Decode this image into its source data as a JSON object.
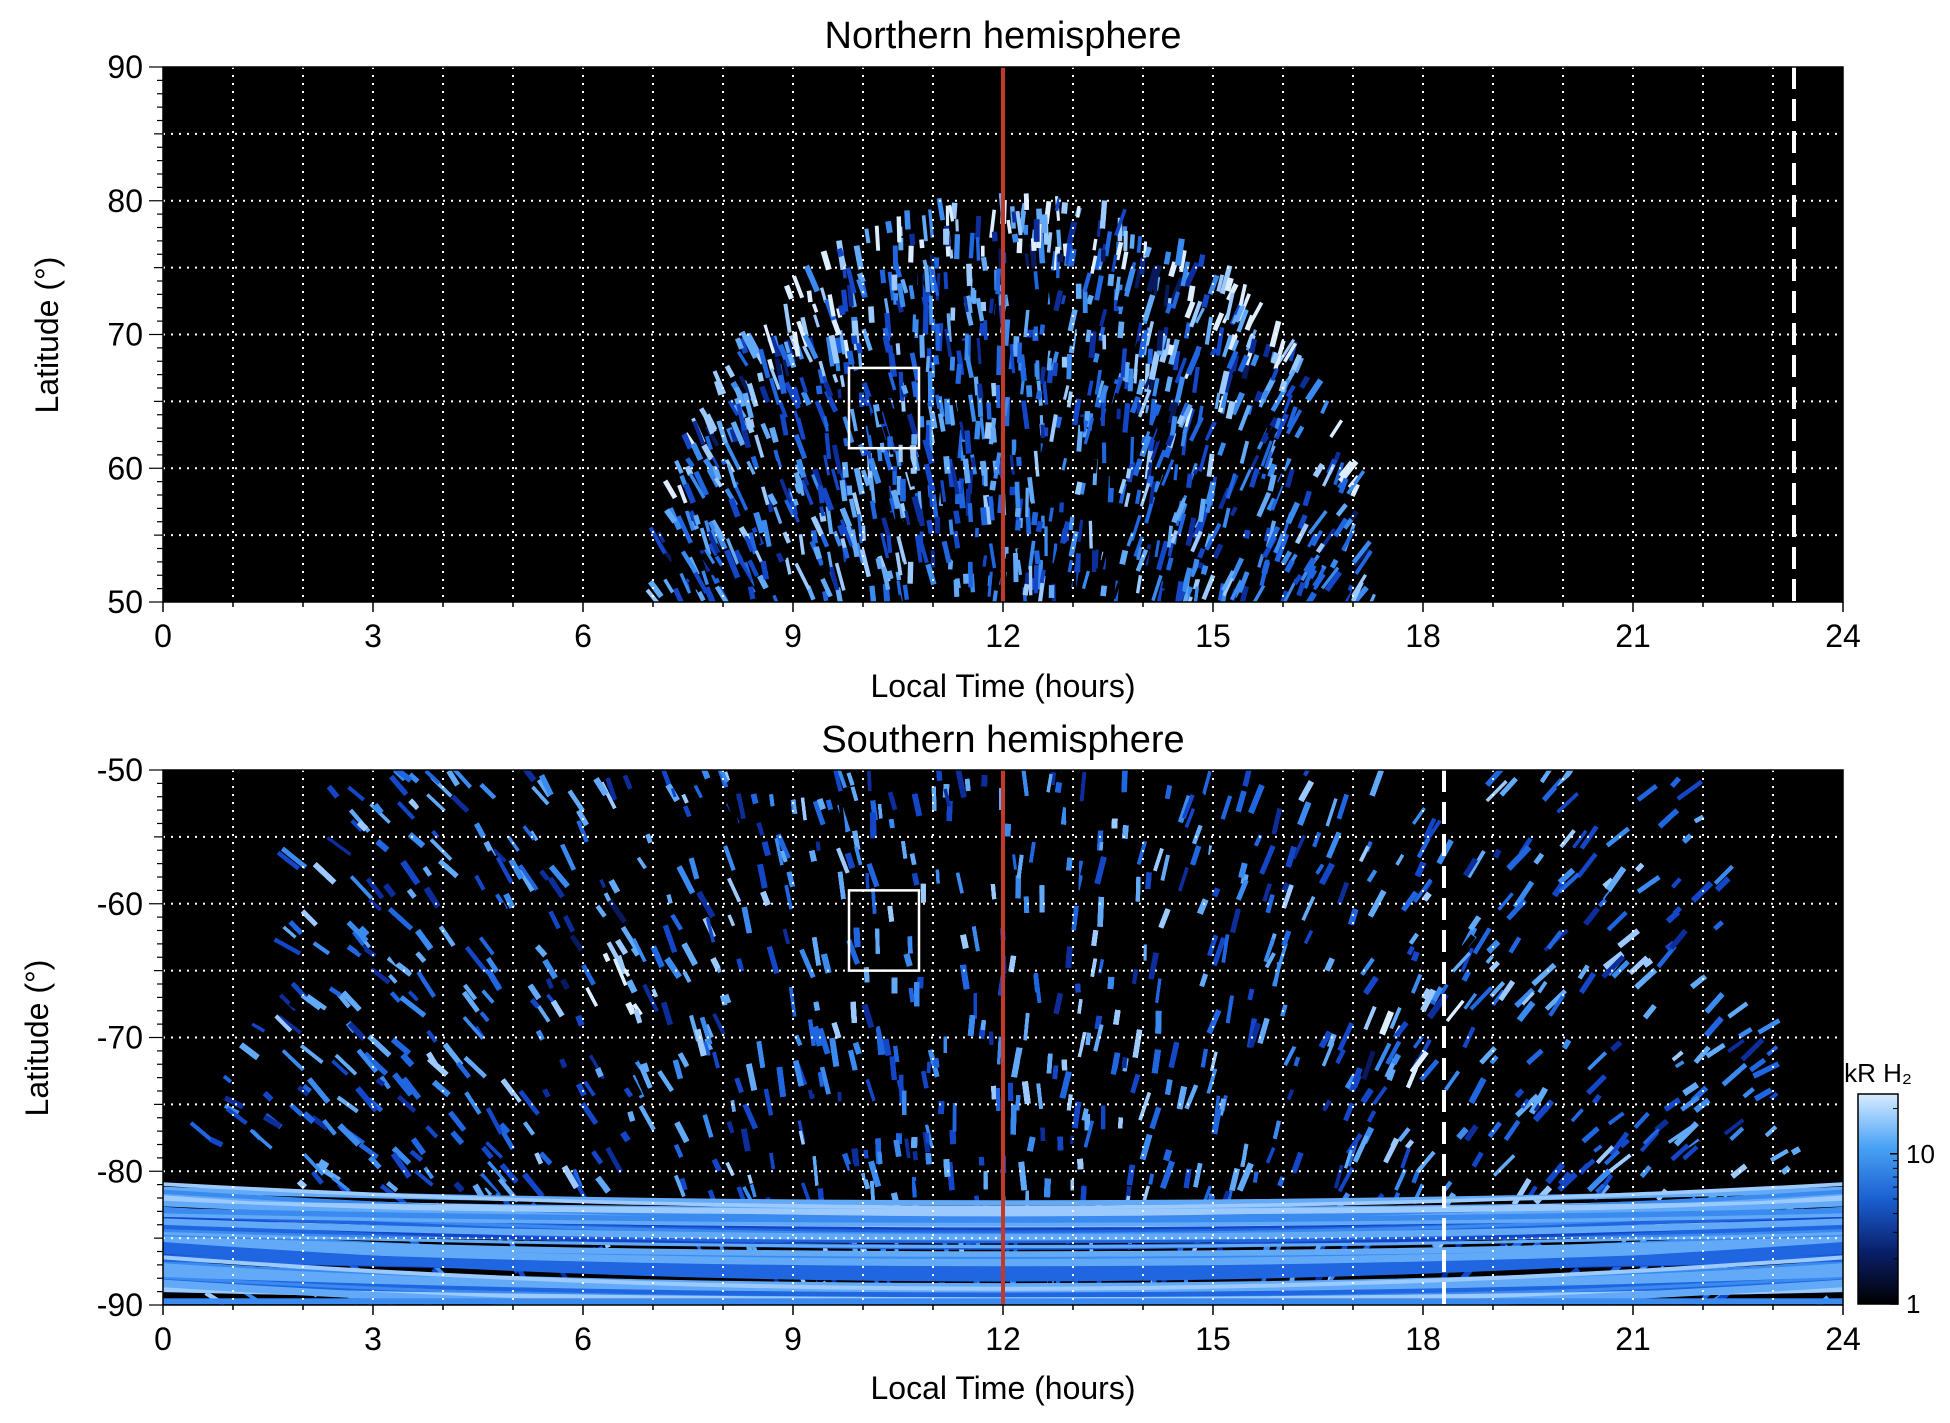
{
  "chart_data": [
    {
      "type": "heatmap",
      "title": "Northern hemisphere",
      "xlabel": "Local Time (hours)",
      "ylabel": "Latitude (°)",
      "xlim": [
        0,
        24
      ],
      "ylim": [
        50,
        90
      ],
      "x_ticks": [
        "0",
        "3",
        "6",
        "9",
        "12",
        "15",
        "18",
        "21",
        "24"
      ],
      "y_ticks": [
        "50",
        "60",
        "70",
        "80",
        "90"
      ],
      "grid": true,
      "coverage_shape": "dome",
      "coverage_lt_range": [
        7.0,
        17.3
      ],
      "coverage_lat_top": 80,
      "bright_features": [
        {
          "lt": 14.8,
          "lat": 68
        },
        {
          "lt": 9.2,
          "lat": 72
        }
      ],
      "marker_lines": [
        {
          "lt": 12.0,
          "style": "solid",
          "color": "#c0392b"
        },
        {
          "lt": 23.3,
          "style": "dashed",
          "color": "#ffffff"
        }
      ],
      "box": {
        "lt": [
          9.8,
          10.8
        ],
        "lat": [
          61.5,
          67.5
        ]
      }
    },
    {
      "type": "heatmap",
      "title": "Southern hemisphere",
      "xlabel": "Local Time (hours)",
      "ylabel": "Latitude (°)",
      "xlim": [
        0,
        24
      ],
      "ylim": [
        -90,
        -50
      ],
      "x_ticks": [
        "0",
        "3",
        "6",
        "9",
        "12",
        "15",
        "18",
        "21",
        "24"
      ],
      "y_ticks": [
        "-90",
        "-80",
        "-70",
        "-60",
        "-50"
      ],
      "grid": true,
      "coverage_shape": "bowl",
      "coverage_lt_range": [
        0,
        24
      ],
      "bright_features": [
        {
          "lt": 6.5,
          "lat": -65
        },
        {
          "lt": 17.9,
          "lat": -70
        }
      ],
      "marker_lines": [
        {
          "lt": 12.0,
          "style": "solid",
          "color": "#c0392b"
        },
        {
          "lt": 18.3,
          "style": "dashed",
          "color": "#ffffff"
        }
      ],
      "box": {
        "lt": [
          9.8,
          10.8
        ],
        "lat": [
          -65,
          -59
        ]
      }
    }
  ],
  "colorbar": {
    "label": "kR H₂",
    "ticks": [
      "1",
      "10"
    ],
    "scale": "log",
    "range": [
      1,
      25
    ],
    "colors": [
      "#000000",
      "#0a1f6b",
      "#1b5fd1",
      "#4aa3f5",
      "#d8ecff"
    ]
  },
  "colors": {
    "background": "#000000",
    "noon_line": "#c0392b",
    "grid": "#ffffff"
  }
}
